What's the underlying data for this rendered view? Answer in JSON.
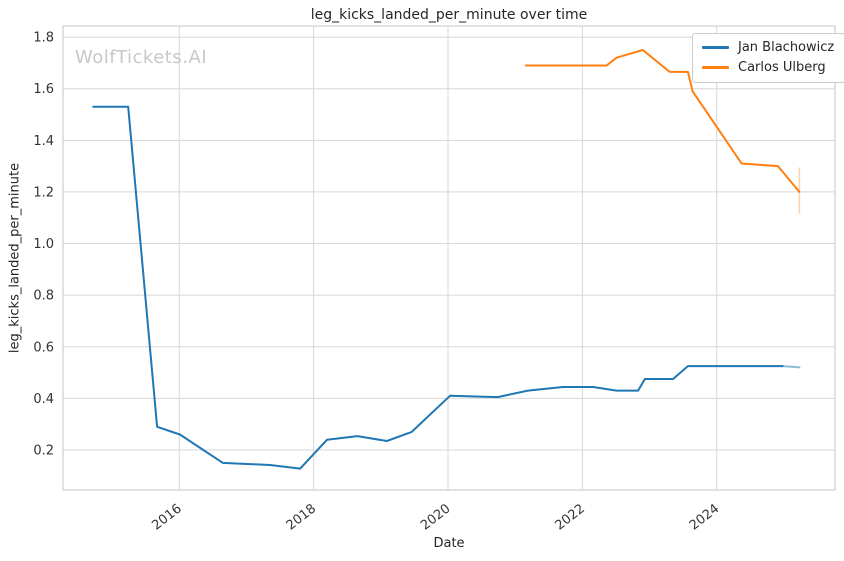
{
  "chart_data": {
    "type": "line",
    "title": "leg_kicks_landed_per_minute over time",
    "xlabel": "Date",
    "ylabel": "leg_kicks_landed_per_minute",
    "watermark": "WolfTickets.AI",
    "grid": true,
    "legend_position": "upper right",
    "xlim": [
      2014.27,
      2025.76
    ],
    "ylim": [
      0.045,
      1.843
    ],
    "xticks": {
      "values": [
        2016,
        2018,
        2020,
        2022,
        2024
      ],
      "labels": [
        "2016",
        "2018",
        "2020",
        "2022",
        "2024"
      ]
    },
    "yticks": {
      "values": [
        0.2,
        0.4,
        0.6,
        0.8,
        1.0,
        1.2,
        1.4,
        1.6,
        1.8
      ],
      "labels": [
        "0.2",
        "0.4",
        "0.6",
        "0.8",
        "1.0",
        "1.2",
        "1.4",
        "1.6",
        "1.8"
      ]
    },
    "colors": {
      "background": "#ffffff",
      "grid": "#d7d7d7",
      "spine": "#cfcfcf",
      "text": "#333333",
      "title_text": "#262626",
      "watermark": "#c8c8c8",
      "blue": "#1f77b4",
      "orange": "#ff7f0e"
    },
    "series": [
      {
        "name": "Jan Blachowicz",
        "color": "#1f77b4",
        "tail_fade": 1,
        "points": [
          [
            2014.72,
            1.53
          ],
          [
            2015.24,
            1.53
          ],
          [
            2015.67,
            0.29
          ],
          [
            2016.01,
            0.26
          ],
          [
            2016.65,
            0.15
          ],
          [
            2017.35,
            0.142
          ],
          [
            2017.8,
            0.128
          ],
          [
            2018.2,
            0.24
          ],
          [
            2018.65,
            0.254
          ],
          [
            2019.09,
            0.235
          ],
          [
            2019.46,
            0.27
          ],
          [
            2020.03,
            0.41
          ],
          [
            2020.74,
            0.405
          ],
          [
            2021.19,
            0.43
          ],
          [
            2021.71,
            0.444
          ],
          [
            2022.16,
            0.444
          ],
          [
            2022.51,
            0.43
          ],
          [
            2022.83,
            0.43
          ],
          [
            2022.93,
            0.475
          ],
          [
            2023.35,
            0.475
          ],
          [
            2023.57,
            0.525
          ],
          [
            2024.98,
            0.525
          ],
          [
            2025.23,
            0.52
          ]
        ]
      },
      {
        "name": "Carlos Ulberg",
        "color": "#ff7f0e",
        "tail_fade": 0,
        "error_bar": {
          "x": 2025.23,
          "low": 1.115,
          "high": 1.295
        },
        "points": [
          [
            2021.16,
            1.69
          ],
          [
            2022.36,
            1.69
          ],
          [
            2022.51,
            1.72
          ],
          [
            2022.9,
            1.75
          ],
          [
            2023.3,
            1.665
          ],
          [
            2023.57,
            1.665
          ],
          [
            2023.64,
            1.59
          ],
          [
            2024.37,
            1.31
          ],
          [
            2024.91,
            1.3
          ],
          [
            2025.23,
            1.2
          ]
        ]
      }
    ]
  }
}
